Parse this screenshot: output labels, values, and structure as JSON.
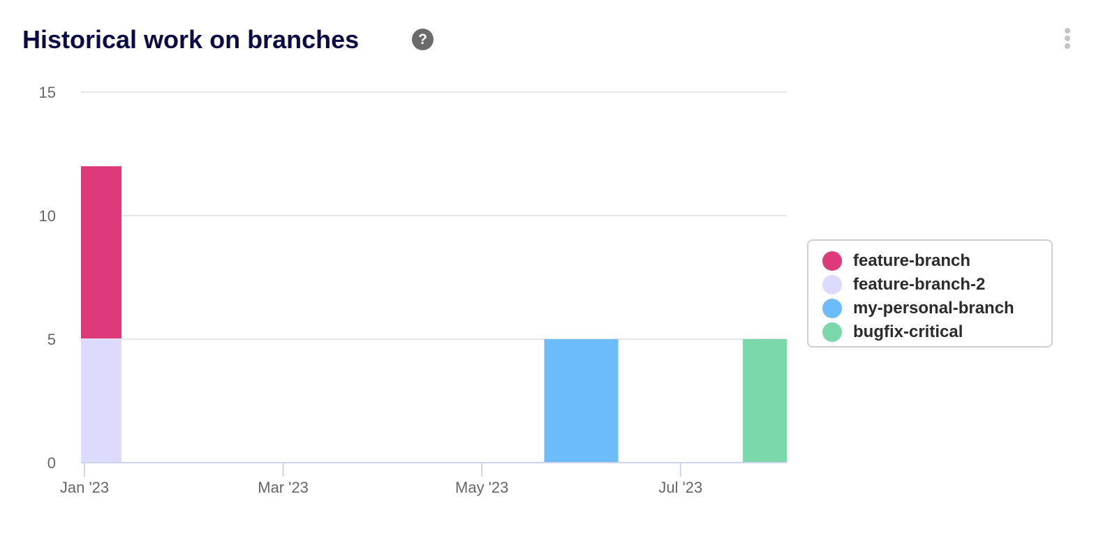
{
  "header": {
    "title": "Historical work on branches",
    "help_icon": "question-circle-icon",
    "menu_icon": "kebab-menu-icon",
    "help_label": "?"
  },
  "chart_data": {
    "type": "bar",
    "stacked": true,
    "title": "",
    "xlabel": "",
    "ylabel": "",
    "ylim": [
      0,
      15
    ],
    "y_ticks": [
      "0",
      "5",
      "10",
      "15"
    ],
    "x_ticks": [
      {
        "date": "2023-01",
        "label": "Jan '23"
      },
      {
        "date": "2023-03",
        "label": "Mar '23"
      },
      {
        "date": "2023-05",
        "label": "May '23"
      },
      {
        "date": "2023-07",
        "label": "Jul '23"
      }
    ],
    "x": [
      "2023-01",
      "2023-06",
      "2023-08"
    ],
    "series": [
      {
        "name": "feature-branch-2",
        "color": "#dcdbfd",
        "values": [
          5,
          0,
          0
        ]
      },
      {
        "name": "feature-branch",
        "color": "#de3a7a",
        "values": [
          7,
          0,
          0
        ]
      },
      {
        "name": "my-personal-branch",
        "color": "#6cbbfa",
        "values": [
          0,
          5,
          0
        ]
      },
      {
        "name": "bugfix-critical",
        "color": "#7ad8ab",
        "values": [
          0,
          0,
          5
        ]
      }
    ],
    "grid": true,
    "legend": "right"
  },
  "legend": [
    {
      "name": "feature-branch",
      "color": "#de3a7a"
    },
    {
      "name": "feature-branch-2",
      "color": "#dcdbfd"
    },
    {
      "name": "my-personal-branch",
      "color": "#6cbbfa"
    },
    {
      "name": "bugfix-critical",
      "color": "#7ad8ab"
    }
  ]
}
